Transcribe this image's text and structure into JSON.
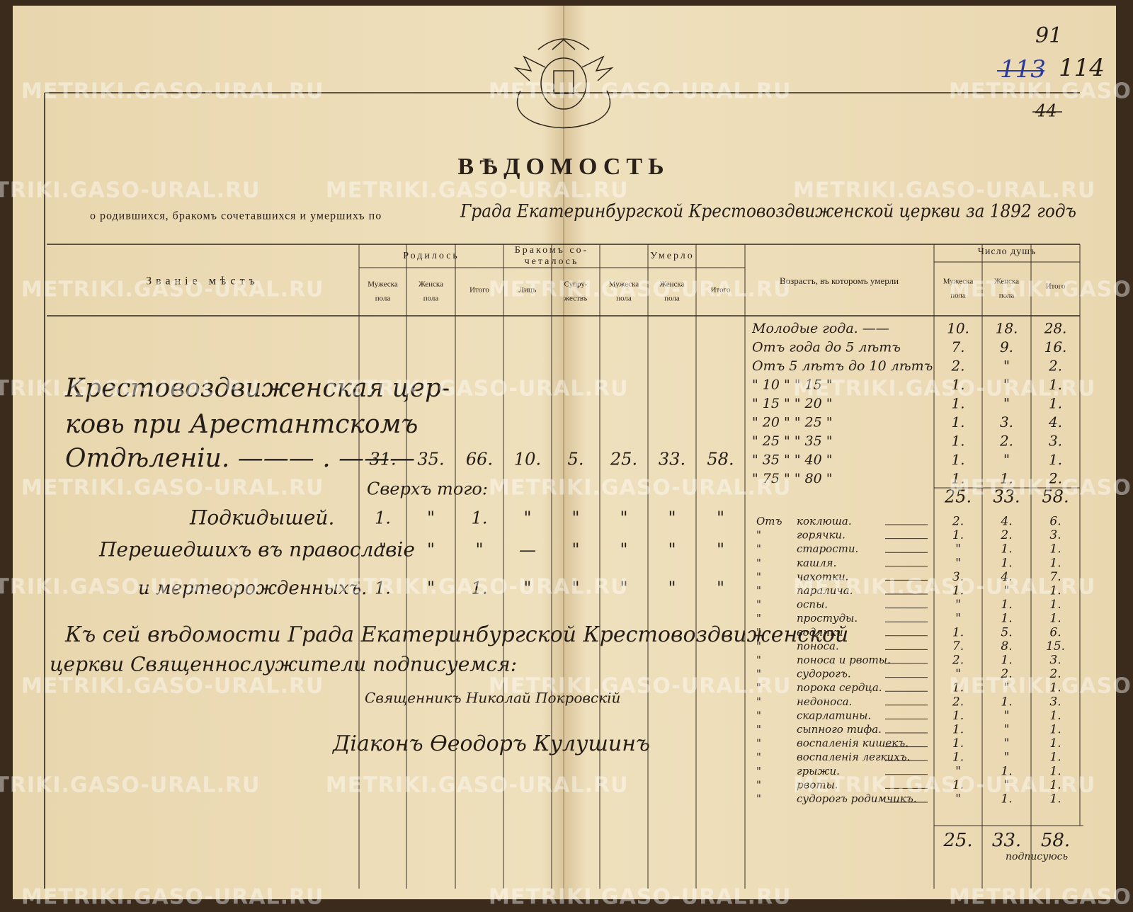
{
  "watermark": "METRIKI.GASO-URAL.RU",
  "sheet_numbers": {
    "current": "91",
    "old": "113",
    "new": "114",
    "struck": "44"
  },
  "title": "ВѢДОМОСТЬ",
  "subtitle": {
    "printed": "о родившихся, бракомъ сочетавшихся и умершихъ по",
    "handwritten": "Града Екатеринбургской Крестовоздвиженской церкви за 1892 годъ"
  },
  "headers": {
    "place": "Званіе мѣстъ",
    "groups": [
      {
        "title": [
          "Родилось"
        ],
        "columns": [
          [
            "Мужеска",
            "пола"
          ],
          [
            "Женска",
            "пола"
          ],
          [
            "Итого"
          ]
        ]
      },
      {
        "title": [
          "Бракомъ со-",
          "четалось"
        ],
        "columns": [
          [
            "Лицъ"
          ],
          [
            "Супру-",
            "жествъ"
          ]
        ]
      },
      {
        "title": [
          "Умерло"
        ],
        "columns": [
          [
            "Мужеска",
            "пола"
          ],
          [
            "Женска",
            "пола"
          ],
          [
            "Итого"
          ]
        ]
      }
    ],
    "age": "Возрастъ, въ которомъ умерли",
    "souls": {
      "title": "Число душъ",
      "columns": [
        [
          "Мужеска",
          "пола"
        ],
        [
          "Женска",
          "пола"
        ],
        [
          "Итого"
        ]
      ]
    }
  },
  "rows": [
    {
      "label": [
        "Крестовоздвиженская цер-",
        "ковь при Арестантскомъ",
        "Отдѣленіи. ——— . ———"
      ],
      "cells": [
        "31.",
        "35.",
        "66.",
        "10.",
        "5.",
        "25.",
        "33.",
        "58."
      ]
    },
    {
      "label": [
        "Подкидышей."
      ],
      "cells": [
        "1.",
        "\"",
        "1.",
        "\"",
        "\"",
        "\"",
        "\"",
        "\""
      ]
    },
    {
      "label": [
        "Перешедшихъ въ православіе"
      ],
      "cells": [
        "\"",
        "\"",
        "\"",
        "—",
        "\"",
        "\"",
        "\"",
        "\""
      ]
    },
    {
      "label": [
        "и мертворожденныхъ."
      ],
      "cells": [
        "1.",
        "\"",
        "1.",
        "\"",
        "\"",
        "\"",
        "\"",
        "\""
      ]
    }
  ],
  "besides": "Сверхъ того:",
  "ages": [
    {
      "label": "Молодые года. ——",
      "values": [
        "10.",
        "18.",
        "28."
      ]
    },
    {
      "label": "Отъ года до 5 лѣтъ",
      "values": [
        "7.",
        "9.",
        "16."
      ]
    },
    {
      "label": "Отъ 5 лѣтъ до 10 лѣтъ",
      "values": [
        "2.",
        "\"",
        "2."
      ]
    },
    {
      "label": "\" 10 \" \" 15 \"",
      "values": [
        "1.",
        "\"",
        "1."
      ]
    },
    {
      "label": "\" 15 \" \" 20 \"",
      "values": [
        "1.",
        "\"",
        "1."
      ]
    },
    {
      "label": "\" 20 \" \" 25 \"",
      "values": [
        "1.",
        "3.",
        "4."
      ]
    },
    {
      "label": "\" 25 \" \" 35 \"",
      "values": [
        "1.",
        "2.",
        "3."
      ]
    },
    {
      "label": "\" 35 \" \" 40 \"",
      "values": [
        "1.",
        "\"",
        "1."
      ]
    },
    {
      "label": "\" 75 \" \" 80 \"",
      "values": [
        "1.",
        "1.",
        "2."
      ]
    }
  ],
  "ages_total": [
    "25.",
    "33.",
    "58."
  ],
  "causes": [
    {
      "mark": "Отъ",
      "cause": "коклюша.",
      "values": [
        "2.",
        "4.",
        "6."
      ]
    },
    {
      "mark": "\"",
      "cause": "горячки.",
      "values": [
        "1.",
        "2.",
        "3."
      ]
    },
    {
      "mark": "\"",
      "cause": "старости.",
      "values": [
        "\"",
        "1.",
        "1."
      ]
    },
    {
      "mark": "\"",
      "cause": "кашля.",
      "values": [
        "\"",
        "1.",
        "1."
      ]
    },
    {
      "mark": "\"",
      "cause": "чахотки.",
      "values": [
        "3.",
        "4.",
        "7."
      ]
    },
    {
      "mark": "\"",
      "cause": "паралича.",
      "values": [
        "1.",
        "\"",
        "1."
      ]
    },
    {
      "mark": "\"",
      "cause": "оспы.",
      "values": [
        "\"",
        "1.",
        "1."
      ]
    },
    {
      "mark": "\"",
      "cause": "простуды.",
      "values": [
        "\"",
        "1.",
        "1."
      ]
    },
    {
      "mark": "\"",
      "cause": "водянки.",
      "values": [
        "1.",
        "5.",
        "6."
      ]
    },
    {
      "mark": "\"",
      "cause": "поноса.",
      "values": [
        "7.",
        "8.",
        "15."
      ]
    },
    {
      "mark": "\"",
      "cause": "поноса и рвоты.",
      "values": [
        "2.",
        "1.",
        "3."
      ]
    },
    {
      "mark": "\"",
      "cause": "судорогъ.",
      "values": [
        "\"",
        "2.",
        "2."
      ]
    },
    {
      "mark": "\"",
      "cause": "порока сердца.",
      "values": [
        "1.",
        "\"",
        "1."
      ]
    },
    {
      "mark": "\"",
      "cause": "недоноса.",
      "values": [
        "2.",
        "1.",
        "3."
      ]
    },
    {
      "mark": "\"",
      "cause": "скарлатины.",
      "values": [
        "1.",
        "\"",
        "1."
      ]
    },
    {
      "mark": "\"",
      "cause": "сыпного тифа.",
      "values": [
        "1.",
        "\"",
        "1."
      ]
    },
    {
      "mark": "\"",
      "cause": "воспаленія кишекъ.",
      "values": [
        "1.",
        "\"",
        "1."
      ]
    },
    {
      "mark": "\"",
      "cause": "воспаленія легкихъ.",
      "values": [
        "1.",
        "\"",
        "1."
      ]
    },
    {
      "mark": "\"",
      "cause": "грыжи.",
      "values": [
        "\"",
        "1.",
        "1."
      ]
    },
    {
      "mark": "\"",
      "cause": "рвоты.",
      "values": [
        "1.",
        "\"",
        "1."
      ]
    },
    {
      "mark": "\"",
      "cause": "судорогъ родимчикъ.",
      "values": [
        "\"",
        "1.",
        "1."
      ]
    }
  ],
  "causes_total": [
    "25.",
    "33.",
    "58."
  ],
  "signatures": {
    "statement": [
      "Къ сей вѣдомости Града Екатеринбургской Крестовоздвиженской",
      "церкви Священнослужители подписуемся:"
    ],
    "priest": "Священникъ Николай Покровскій",
    "deacon": "Діаконъ Ѳеодоръ Кулушинъ",
    "check": "подписуюсь"
  }
}
